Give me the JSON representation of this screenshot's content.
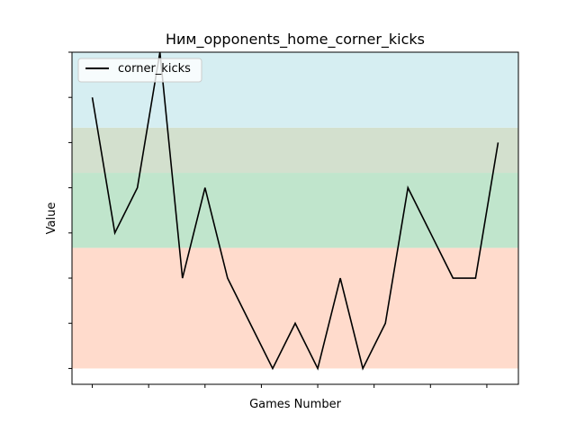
{
  "chart_data": {
    "type": "line",
    "title": "Ним_opponents_home_corner_kicks",
    "xlabel": "Games Number",
    "ylabel": "Value",
    "legend_position": "top-left",
    "grid": false,
    "tick_labels_visible": false,
    "ylim": [
      -0.35,
      7.0
    ],
    "series": [
      {
        "name": "corner_kicks",
        "color": "#000000",
        "x": [
          0,
          1,
          2,
          3,
          4,
          5,
          6,
          7,
          8,
          9,
          10,
          11,
          12,
          13,
          14,
          15,
          16,
          17,
          18
        ],
        "values": [
          6,
          3,
          4,
          7,
          2,
          4,
          2,
          1,
          0,
          1,
          0,
          2,
          0,
          1,
          4,
          3,
          2,
          2,
          5
        ]
      }
    ],
    "x_ticks": [
      0,
      2.5,
      5,
      7.5,
      10,
      12.5,
      15,
      17.5
    ],
    "y_ticks": [
      0,
      1,
      2,
      3,
      4,
      5,
      6,
      7
    ],
    "bands": [
      {
        "from": 0,
        "to": 2.67,
        "color": "#ffdbcc"
      },
      {
        "from": 2.67,
        "to": 4.33,
        "color": "#c0e5cc"
      },
      {
        "from": 4.33,
        "to": 5.33,
        "color": "#d3e0ce"
      },
      {
        "from": 5.33,
        "to": 7.0,
        "color": "#d6eef2"
      }
    ]
  }
}
